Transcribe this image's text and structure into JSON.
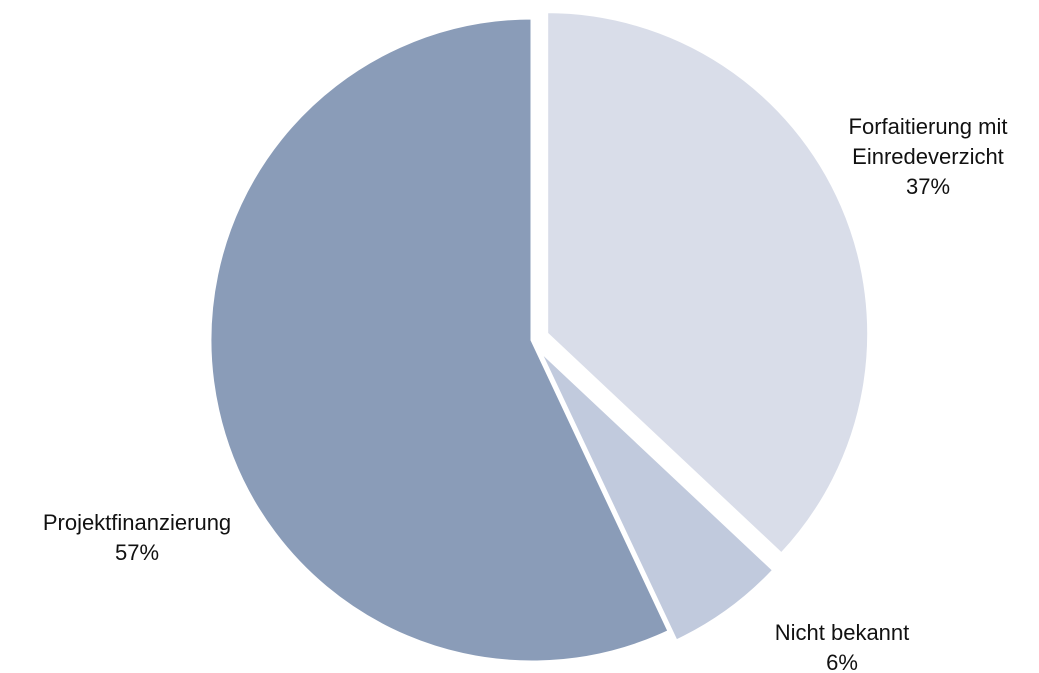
{
  "chart_data": {
    "type": "pie",
    "categories": [
      "Forfaitierung mit Einredeverzicht",
      "Nicht bekannt",
      "Projektfinanzierung"
    ],
    "values": [
      37,
      6,
      57
    ],
    "value_labels": [
      "37%",
      "6%",
      "57%"
    ],
    "colors": [
      "#d9dde9",
      "#c1cadd",
      "#8a9cb8"
    ]
  }
}
